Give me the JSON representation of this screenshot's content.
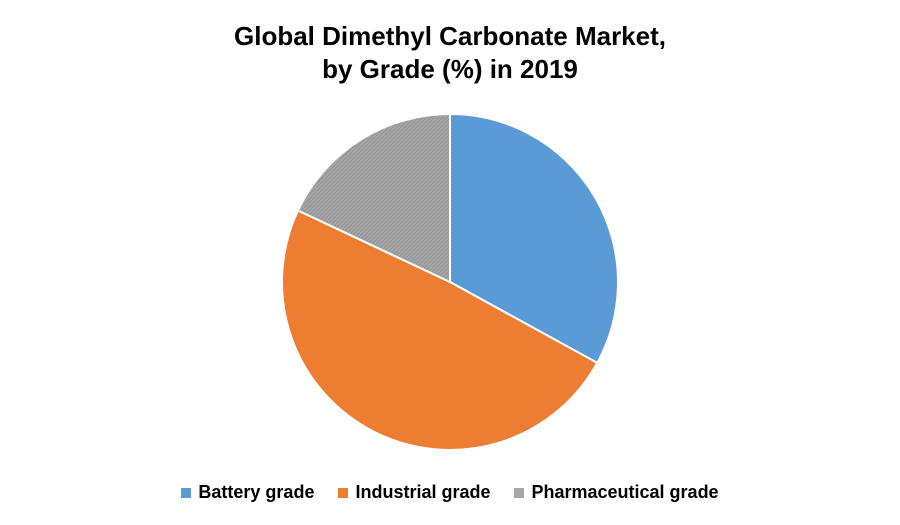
{
  "chart_data": {
    "type": "pie",
    "title": "Global Dimethyl Carbonate Market,",
    "subtitle": "by Grade (%) in 2019",
    "categories": [
      "Battery grade",
      "Industrial grade",
      "Pharmaceutical grade"
    ],
    "values": [
      33,
      49,
      18
    ],
    "colors": [
      "#5B9BD5",
      "#ED7D31",
      "#A5A5A5"
    ],
    "legend": "bottom",
    "start_angle": "12 o'clock, clockwise"
  }
}
